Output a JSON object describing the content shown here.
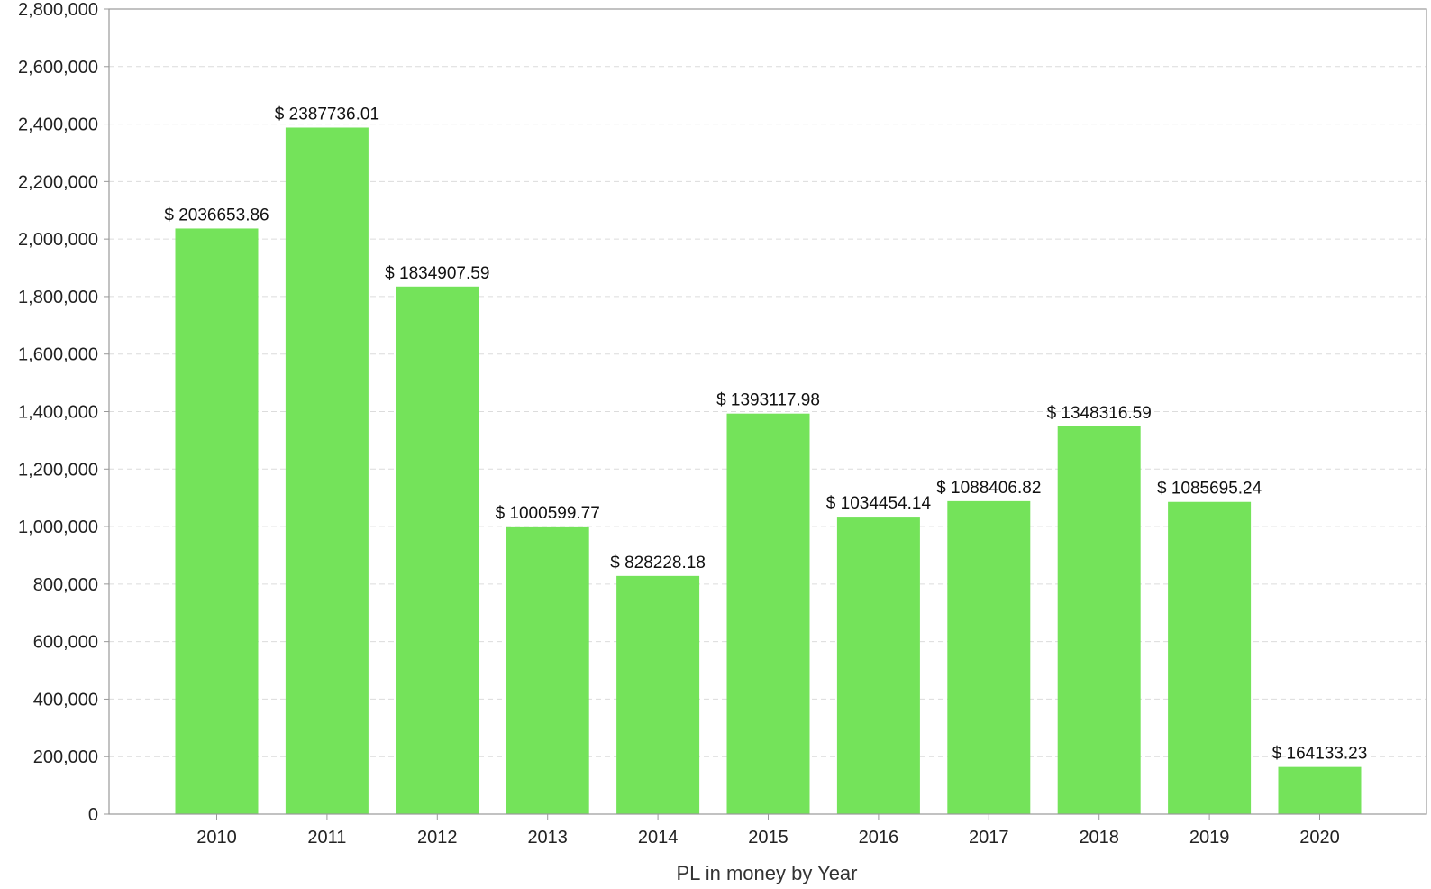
{
  "chart_data": {
    "type": "bar",
    "title": "",
    "xlabel": "PL in money by Year",
    "ylabel": "",
    "categories": [
      "2010",
      "2011",
      "2012",
      "2013",
      "2014",
      "2015",
      "2016",
      "2017",
      "2018",
      "2019",
      "2020"
    ],
    "values": [
      2036653.86,
      2387736.01,
      1834907.59,
      1000599.77,
      828228.18,
      1393117.98,
      1034454.14,
      1088406.82,
      1348316.59,
      1085695.24,
      164133.23
    ],
    "data_labels": [
      "$ 2036653.86",
      "$ 2387736.01",
      "$ 1834907.59",
      "$ 1000599.77",
      "$ 828228.18",
      "$ 1393117.98",
      "$ 1034454.14",
      "$ 1088406.82",
      "$ 1348316.59",
      "$ 1085695.24",
      "$ 164133.23"
    ],
    "ylim": [
      0,
      2800000
    ],
    "yticks": [
      0,
      200000,
      400000,
      600000,
      800000,
      1000000,
      1200000,
      1400000,
      1600000,
      1800000,
      2000000,
      2200000,
      2400000,
      2600000,
      2800000
    ],
    "ytick_labels": [
      "0",
      "200,000",
      "400,000",
      "600,000",
      "800,000",
      "1,000,000",
      "1,200,000",
      "1,400,000",
      "1,600,000",
      "1,800,000",
      "2,000,000",
      "2,200,000",
      "2,400,000",
      "2,600,000",
      "2,800,000"
    ],
    "grid": true,
    "legend": "none",
    "colors": {
      "bar": "#74e35a",
      "grid": "#dcdcdc",
      "axis": "#999999",
      "text": "#222222"
    }
  }
}
